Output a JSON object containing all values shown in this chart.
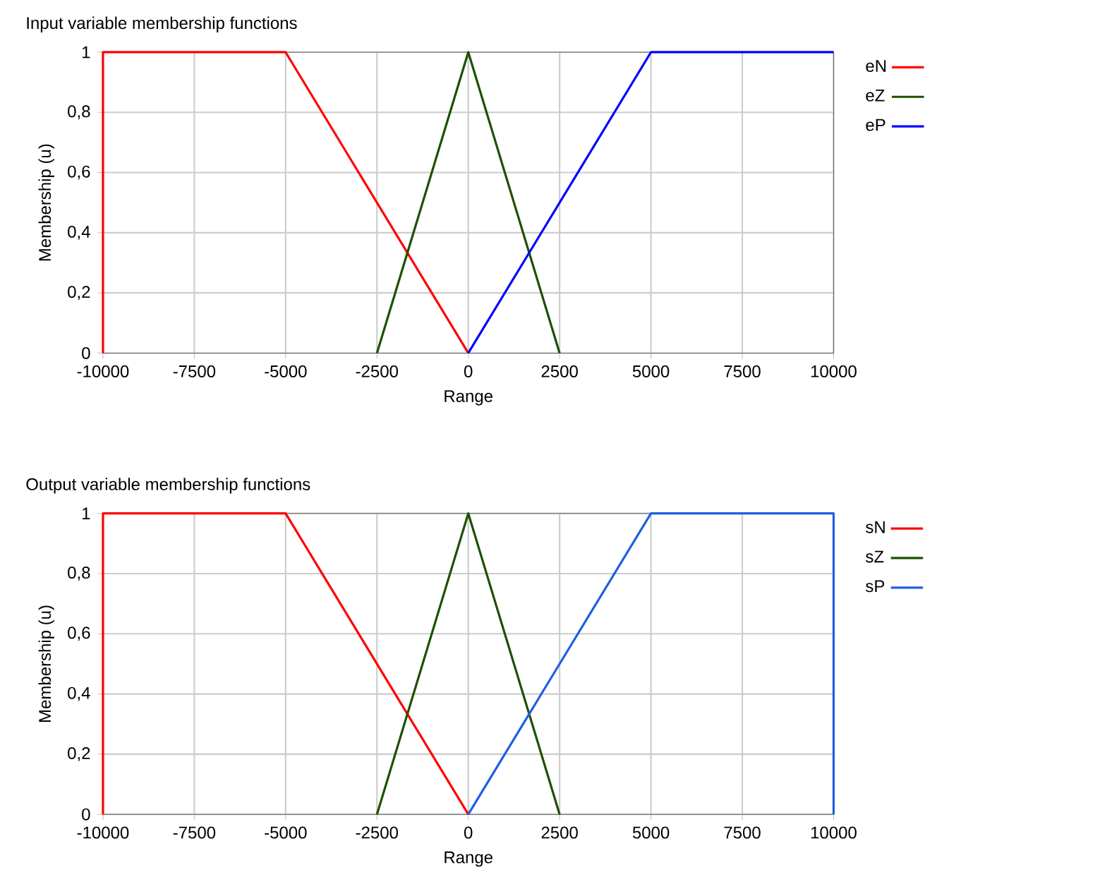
{
  "chart_data": [
    {
      "type": "line",
      "title": "Input variable membership functions",
      "xlabel": "Range",
      "ylabel": "Membership (u)",
      "xlim": [
        -10000,
        10000
      ],
      "xticks": [
        -10000,
        -7500,
        -5000,
        -2500,
        0,
        2500,
        5000,
        7500,
        10000
      ],
      "ylim": [
        0,
        1
      ],
      "yticks": [
        0,
        {
          "value": 0.2,
          "label": "0,2"
        },
        {
          "value": 0.4,
          "label": "0,4"
        },
        {
          "value": 0.6,
          "label": "0,6"
        },
        {
          "value": 0.8,
          "label": "0,8"
        },
        1
      ],
      "grid": true,
      "legend": "right",
      "line_style": "solid",
      "series": [
        {
          "name": "eN",
          "color": "#ff0000",
          "x": [
            -10000,
            -10000,
            -5000,
            0
          ],
          "values": [
            0,
            1,
            1,
            0
          ]
        },
        {
          "name": "eZ",
          "color": "#1e5000",
          "x": [
            -2500,
            0,
            2500
          ],
          "values": [
            0,
            1,
            0
          ]
        },
        {
          "name": "eP",
          "color": "#0000ff",
          "x": [
            0,
            5000,
            10000
          ],
          "values": [
            0,
            1,
            1
          ]
        }
      ]
    },
    {
      "type": "line",
      "title": "Output variable membership functions",
      "xlabel": "Range",
      "ylabel": "Membership (u)",
      "xlim": [
        -10000,
        10000
      ],
      "xticks": [
        -10000,
        -7500,
        -5000,
        -2500,
        0,
        2500,
        5000,
        7500,
        10000
      ],
      "ylim": [
        0,
        1
      ],
      "yticks": [
        0,
        {
          "value": 0.2,
          "label": "0,2"
        },
        {
          "value": 0.4,
          "label": "0,4"
        },
        {
          "value": 0.6,
          "label": "0,6"
        },
        {
          "value": 0.8,
          "label": "0,8"
        },
        1
      ],
      "grid": true,
      "legend": "right",
      "line_style": "solid",
      "series": [
        {
          "name": "sN",
          "color": "#ff0000",
          "x": [
            -10000,
            -10000,
            -5000,
            0
          ],
          "values": [
            0,
            1,
            1,
            0
          ]
        },
        {
          "name": "sZ",
          "color": "#1e5000",
          "x": [
            -2500,
            0,
            2500
          ],
          "values": [
            0,
            1,
            0
          ]
        },
        {
          "name": "sP",
          "color": "#1f5fe0",
          "x": [
            0,
            5000,
            10000,
            10000
          ],
          "values": [
            0,
            1,
            1,
            0
          ]
        }
      ]
    }
  ]
}
